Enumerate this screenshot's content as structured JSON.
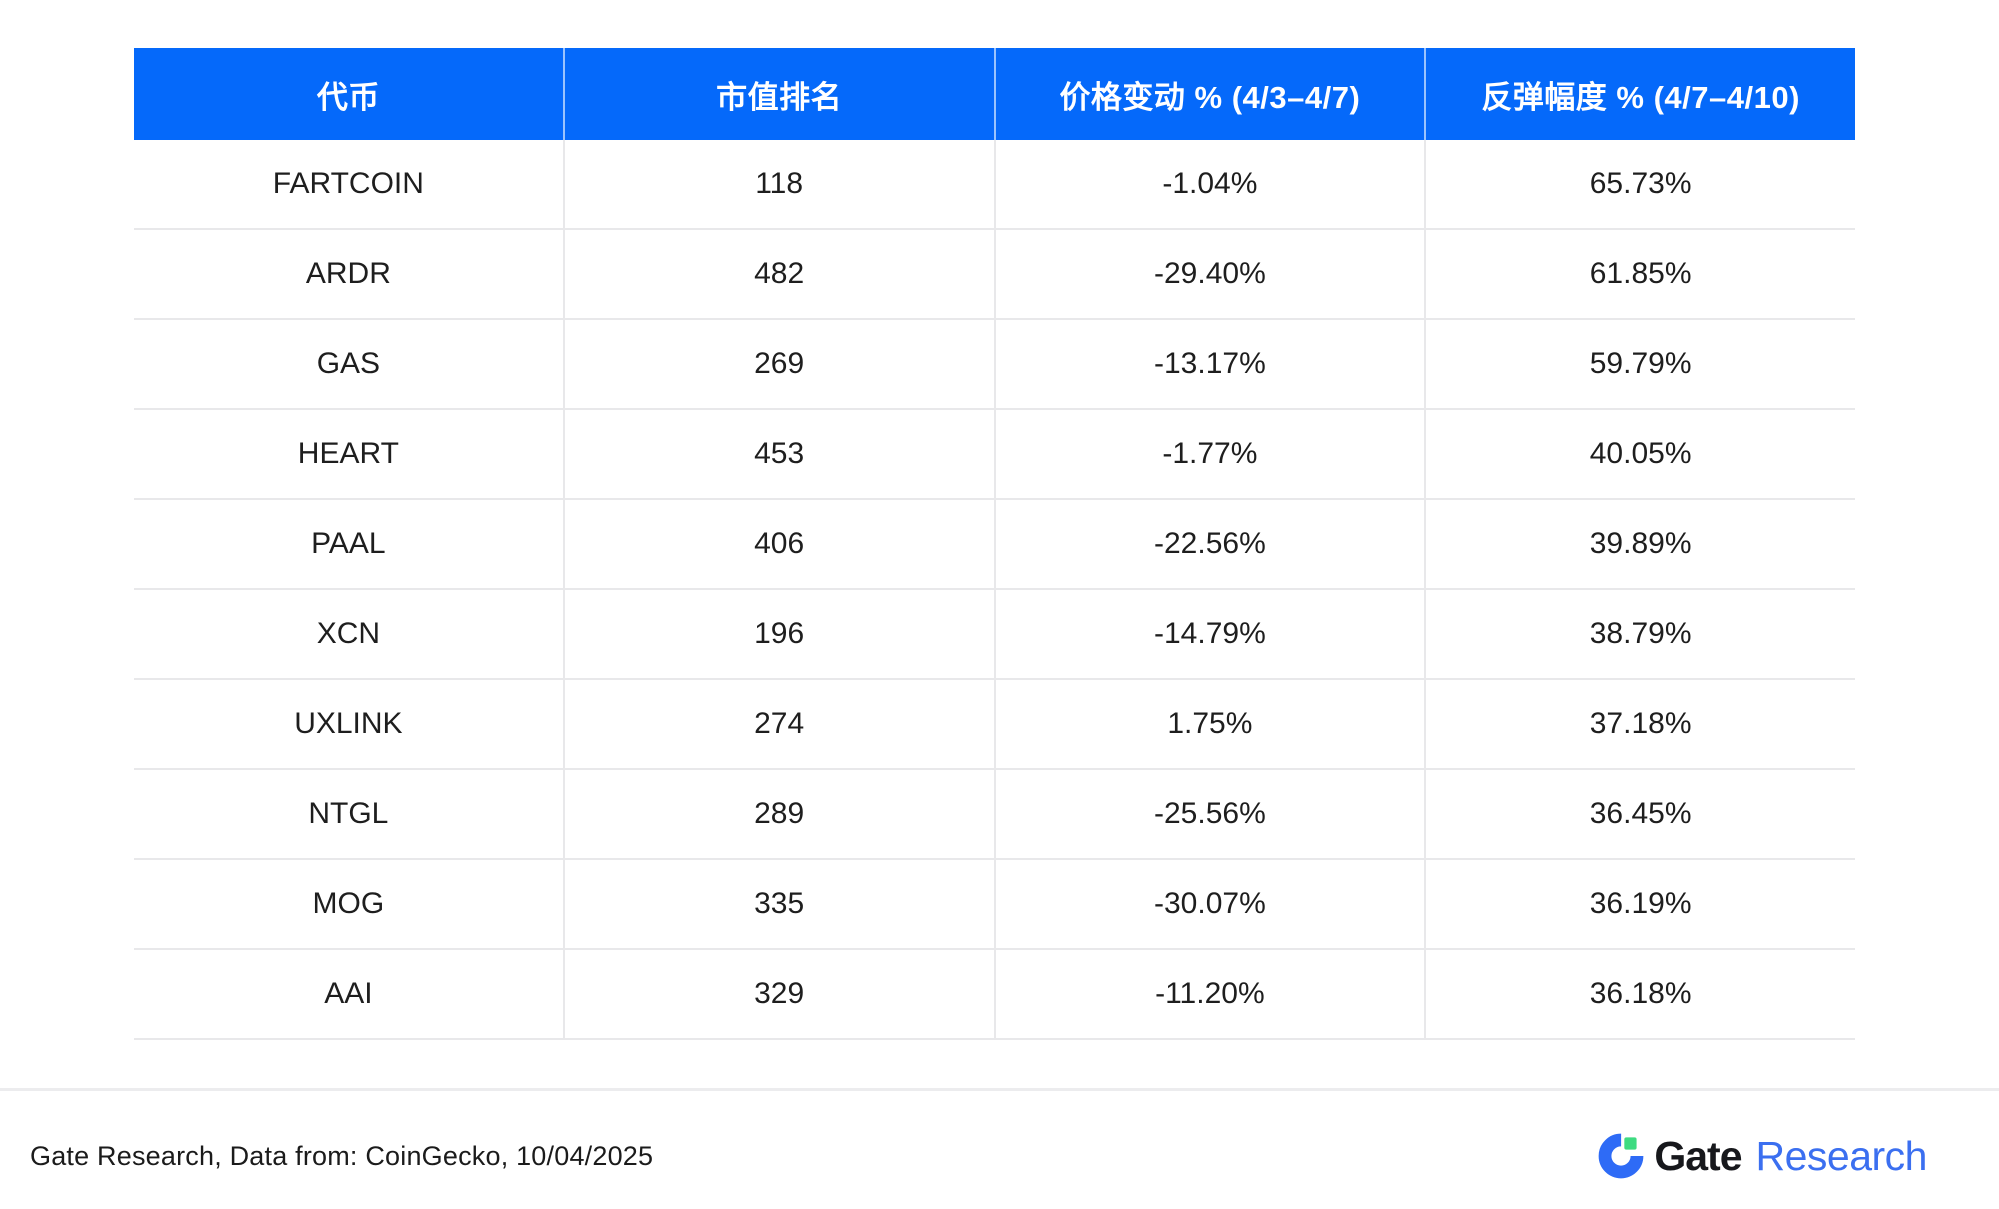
{
  "colors": {
    "page_bg": "#ffffff",
    "header_bg": "#0569fa",
    "header_text": "#ffffff",
    "header_divider": "rgba(255,255,255,0.6)",
    "row_divider": "#e8e8ea",
    "body_text": "#1e1e1e",
    "page_divider": "#ececee",
    "logo_circle_blue": "#2e6bf6",
    "logo_square_green": "#3edb81",
    "logo_dark": "#17181c",
    "logo_blue_text": "#3b6ff0"
  },
  "chart_data": {
    "type": "table",
    "columns": [
      "代币",
      "市值排名",
      "价格变动 % (4/3–4/7)",
      "反弹幅度 % (4/7–4/10)"
    ],
    "rows": [
      [
        "FARTCOIN",
        "118",
        "-1.04%",
        "65.73%"
      ],
      [
        "ARDR",
        "482",
        "-29.40%",
        "61.85%"
      ],
      [
        "GAS",
        "269",
        "-13.17%",
        "59.79%"
      ],
      [
        "HEART",
        "453",
        "-1.77%",
        "40.05%"
      ],
      [
        "PAAL",
        "406",
        "-22.56%",
        "39.89%"
      ],
      [
        "XCN",
        "196",
        "-14.79%",
        "38.79%"
      ],
      [
        "UXLINK",
        "274",
        "1.75%",
        "37.18%"
      ],
      [
        "NTGL",
        "289",
        "-25.56%",
        "36.45%"
      ],
      [
        "MOG",
        "335",
        "-30.07%",
        "36.19%"
      ],
      [
        "AAI",
        "329",
        "-11.20%",
        "36.18%"
      ]
    ]
  },
  "footer": {
    "source_text": "Gate Research, Data from: CoinGecko, 10/04/2025",
    "logo": {
      "brand": "Gate",
      "suffix": "Research"
    }
  }
}
